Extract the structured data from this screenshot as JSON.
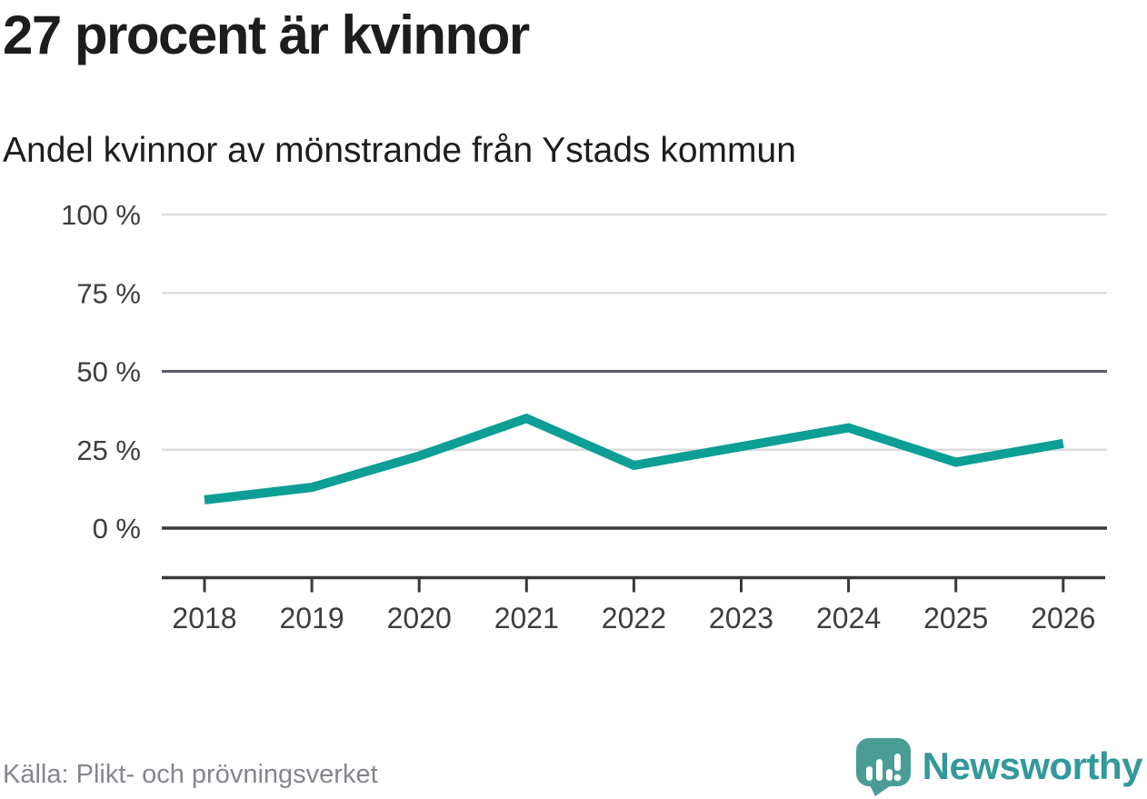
{
  "header": {
    "title": "27 procent är kvinnor",
    "subtitle": "Andel kvinnor av mönstrande från Ystads kommun"
  },
  "chart_data": {
    "type": "line",
    "title": "27 procent är kvinnor",
    "subtitle": "Andel kvinnor av mönstrande från Ystads kommun",
    "categories": [
      "2018",
      "2019",
      "2020",
      "2021",
      "2022",
      "2023",
      "2024",
      "2025",
      "2026"
    ],
    "series": [
      {
        "name": "Andel kvinnor av mönstrande",
        "values": [
          9,
          13,
          23,
          35,
          20,
          26,
          32,
          21,
          27
        ]
      }
    ],
    "unit": "%",
    "ylim": [
      0,
      100
    ],
    "grid": "horizontal",
    "legend": "none",
    "yticks": [
      {
        "value": 0,
        "label": "0 %",
        "emphasis": "axis"
      },
      {
        "value": 25,
        "label": "25 %",
        "emphasis": "normal"
      },
      {
        "value": 50,
        "label": "50 %",
        "emphasis": "strong"
      },
      {
        "value": 75,
        "label": "75 %",
        "emphasis": "normal"
      },
      {
        "value": 100,
        "label": "100 %",
        "emphasis": "normal"
      }
    ],
    "style": {
      "line_color": "#0d9e96",
      "grid_color": "#dcdcdc",
      "strong_grid_color": "#5c5c66",
      "axis_color": "#39393d",
      "tick_label_color": "#3d3d3d"
    }
  },
  "footer": {
    "source": "Källa: Plikt- och prövningsverket",
    "brand": "Newsworthy"
  },
  "colors": {
    "brand_teal": "#33989b",
    "logo_bubble": "#4a9c97",
    "text_black": "#1d1d1b",
    "source_gray": "#85858d"
  }
}
